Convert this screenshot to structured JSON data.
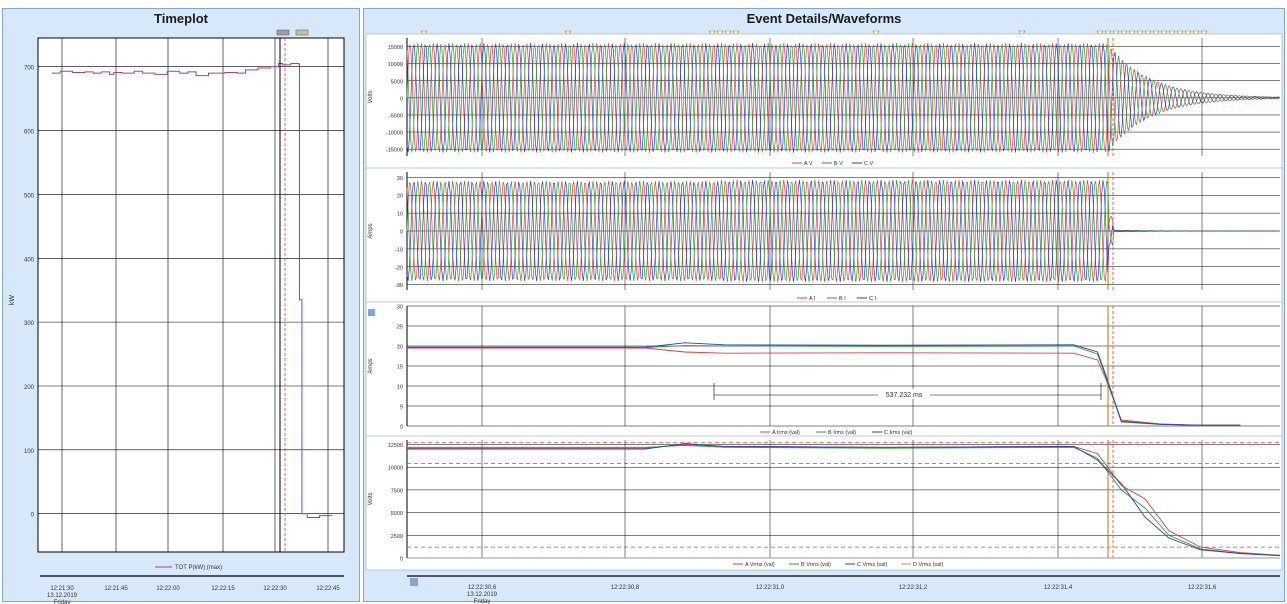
{
  "titles": {
    "left": "Timeplot",
    "right": "Event Details/Waveforms"
  },
  "colors": {
    "bg": "#d8e8fb",
    "plot_bg": "#ffffff",
    "phase_a": "#d94040",
    "phase_b": "#2aa02a",
    "phase_c": "#2a3fc0",
    "phase_d": "#9a9a9a",
    "kw": "#a040a0",
    "ref_line": "#e04040"
  },
  "chart_data": [
    {
      "type": "line",
      "name": "timeplot",
      "ylabel": "kW",
      "ylim": [
        -60,
        745
      ],
      "yticks": [
        0,
        100,
        200,
        300,
        400,
        500,
        600,
        700
      ],
      "ytick_labels": [
        "0",
        "100",
        "200",
        "300",
        "400",
        "500",
        "600",
        "700"
      ],
      "xticks": [
        "12:21:30",
        "12:21:45",
        "12:22:00",
        "12:22:15",
        "12:22:30",
        "12:22:45"
      ],
      "xdate": "13.12.2019",
      "xday": "Friday",
      "series": [
        {
          "name": "TOT P(kW) (max)",
          "x": [
            0,
            2,
            5,
            8,
            10,
            12,
            14,
            15,
            17,
            20,
            22,
            25,
            28,
            31,
            33,
            35,
            38,
            42,
            45,
            47,
            50,
            53,
            55,
            56,
            58,
            60,
            60.1,
            60.6,
            60.7,
            62,
            63,
            65,
            68
          ],
          "y": [
            690,
            693,
            691,
            692,
            690,
            692,
            688,
            691,
            690,
            693,
            690,
            688,
            693,
            690,
            692,
            686,
            690,
            691,
            690,
            695,
            698,
            700,
            705,
            703,
            705,
            703,
            335,
            335,
            0,
            -6,
            -6,
            -3,
            -3
          ]
        }
      ]
    },
    {
      "type": "line",
      "name": "voltage-waveform",
      "ylabel": "Volts",
      "ylim": [
        -17000,
        17500
      ],
      "yticks": [
        -15000,
        -10000,
        -5000,
        0,
        5000,
        10000,
        15000
      ],
      "ytick_labels": [
        "-15000",
        "-10000",
        "-5000",
        "0",
        "5000",
        "10000",
        "15000"
      ],
      "legend": [
        "A V",
        "B V",
        "C V"
      ],
      "description_values": {
        "amplitude": 16000,
        "cycles_before_fault": 60,
        "decay_after_fault_cycles": 13
      }
    },
    {
      "type": "line",
      "name": "current-waveform",
      "ylabel": "Amps",
      "ylim": [
        -33,
        33
      ],
      "yticks": [
        -30,
        -20,
        -10,
        0,
        10,
        20,
        30
      ],
      "ytick_labels": [
        "-30",
        "-20",
        "-10",
        "0",
        "10",
        "20",
        "30"
      ],
      "legend": [
        "A I",
        "B I",
        "C I"
      ],
      "description_values": {
        "amplitude": 28,
        "cycles_before_fault": 60
      }
    },
    {
      "type": "line",
      "name": "current-rms",
      "ylabel": "Amps",
      "ylim": [
        0,
        30
      ],
      "yticks": [
        0,
        5,
        10,
        15,
        20,
        25,
        30
      ],
      "ytick_labels": [
        "0",
        "5",
        "10",
        "15",
        "20",
        "25",
        "30"
      ],
      "x": [
        30.6,
        30.9,
        30.95,
        31.0,
        31.2,
        31.44,
        31.47,
        31.48,
        31.5,
        31.55,
        31.6,
        31.65
      ],
      "series": [
        {
          "name": "A Irms (val)",
          "y": [
            19.5,
            19.5,
            18.5,
            18.2,
            18.3,
            18.2,
            16.5,
            12,
            1.5,
            0.5,
            0.2,
            0.2
          ]
        },
        {
          "name": "B Irms (val)",
          "y": [
            19.6,
            19.6,
            20.1,
            20.0,
            19.9,
            20.0,
            18,
            12.5,
            1.0,
            0.4,
            0.2,
            0.2
          ]
        },
        {
          "name": "C Irms (val)",
          "y": [
            19.7,
            19.7,
            20.8,
            20.3,
            20.2,
            20.3,
            18.5,
            13,
            1.2,
            0.4,
            0.2,
            0.2
          ]
        }
      ],
      "annotation": "537.232 ms"
    },
    {
      "type": "line",
      "name": "voltage-rms",
      "ylabel": "Volts",
      "ylim": [
        0,
        13000
      ],
      "yticks": [
        0,
        2500,
        5000,
        7500,
        10000,
        12500
      ],
      "ytick_labels": [
        "0",
        "2500",
        "5000",
        "7500",
        "10000",
        "12500"
      ],
      "ref_lines": [
        12700,
        10400,
        1200
      ],
      "x": [
        30.6,
        30.9,
        30.95,
        31.0,
        31.2,
        31.44,
        31.47,
        31.5,
        31.53,
        31.56,
        31.6,
        31.65,
        31.7
      ],
      "series": [
        {
          "name": "A Vrms (val)",
          "y": [
            12100,
            12100,
            12500,
            12300,
            12200,
            12300,
            11500,
            8000,
            6500,
            3000,
            1200,
            600,
            300
          ]
        },
        {
          "name": "B Vrms (val)",
          "y": [
            12200,
            12200,
            12400,
            12200,
            12100,
            12200,
            11000,
            7500,
            5500,
            2500,
            1000,
            500,
            300
          ]
        },
        {
          "name": "C Vrms (val)",
          "y": [
            12000,
            12000,
            12600,
            12300,
            12200,
            12300,
            10800,
            8200,
            4500,
            2200,
            900,
            500,
            250
          ]
        },
        {
          "name": "D Vrms (val)",
          "y": [
            0,
            0,
            0,
            0,
            0,
            0,
            0,
            0,
            0,
            0,
            0,
            0,
            0
          ]
        }
      ]
    }
  ],
  "waveform_time_axis": {
    "labels": [
      "12:22:30,8",
      "12:22:31,0",
      "12:22:31,2",
      "12:22:31,4",
      "12:22:31,6"
    ],
    "date": "13.12.2019",
    "day": "Friday",
    "first_label": "12:22:30,6"
  }
}
